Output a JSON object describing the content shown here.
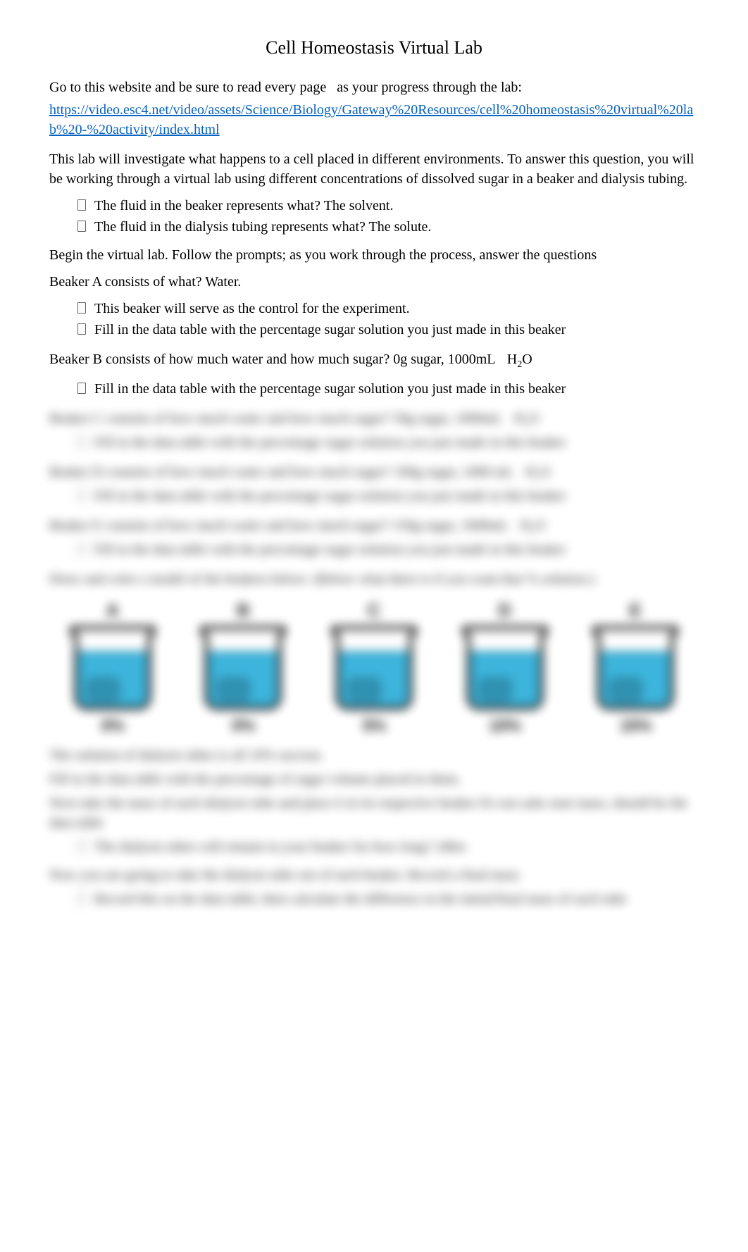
{
  "title": "Cell Homeostasis Virtual Lab",
  "intro": {
    "instruction_prefix": "Go to this website and be sure to read every page",
    "instruction_suffix": "as your progress through the lab:",
    "link_text": "https://video.esc4.net/video/assets/Science/Biology/Gateway%20Resources/cell%20homeostasis%20virtual%20lab%20-%20activity/index.html"
  },
  "description": "This lab will investigate what happens to a cell placed in different environments. To answer this question, you will be working through a virtual lab using different concentrations of dissolved sugar in a beaker and dialysis tubing.",
  "fluid_questions": [
    "The fluid in the beaker represents what? The solvent.",
    "The fluid in the dialysis tubing represents what? The solute."
  ],
  "begin_text": "Begin the virtual lab. Follow the prompts; as you work through the process, answer the questions",
  "beaker_a": {
    "question": "Beaker A consists of what? Water.",
    "bullets": [
      "This beaker will serve as the control for the experiment.",
      "Fill in the data table with the percentage sugar solution you just made in this beaker"
    ]
  },
  "beaker_b": {
    "question": "Beaker B consists of how much water and how much sugar? 0g sugar, 1000mL",
    "formula_h": "H",
    "formula_sub": "2",
    "formula_o": "O",
    "bullets": [
      "Fill in the data table with the percentage sugar solution you just made in this beaker"
    ]
  },
  "blurred": {
    "beaker_c": {
      "question": "Beaker C consists of how much water and how much sugar? 50g sugar, 1000mL",
      "formula": "H₂O",
      "bullet": "Fill in the data table with the percentage sugar solution you just made in this beaker"
    },
    "beaker_d": {
      "question": "Beaker D consists of how much water and how much sugar? 100g sugar, 1000 mL",
      "formula": "H₂O",
      "bullet": "Fill in the data table with the percentage sugar solution you just made in this beaker"
    },
    "beaker_e": {
      "question": "Beaker E consists of how much water and how much sugar? 150g sugar, 1000mL",
      "formula": "H₂O",
      "bullet": "Fill in the data table with the percentage sugar solution you just made in this beaker"
    },
    "draw_instruction": "Draw and color a model of the beakers below: (Below what there is if you want that % solution.)",
    "beakers": [
      {
        "letter": "A",
        "label": "0%",
        "fill_color": "#1ba8d6"
      },
      {
        "letter": "B",
        "label": "0%",
        "fill_color": "#1ba8d6"
      },
      {
        "letter": "C",
        "label": "5%",
        "fill_color": "#1ba8d6"
      },
      {
        "letter": "D",
        "label": "10%",
        "fill_color": "#1ba8d6"
      },
      {
        "letter": "E",
        "label": "15%",
        "fill_color": "#1ba8d6"
      }
    ],
    "post_lines": [
      "The solution of dialysis tubes is all 10% sucrose.",
      "Fill in the data table with the percentage of sugar volume placed in them.",
      "Next take the mass of each dialysis tube and place it in its respective beaker    It's not asks start mass, should be the data table",
      "The dialysis tubes will remain in your beaker for how long? 24hrs",
      "Now you are going to take the dialysis tube out of each beaker. Record a final mass",
      "Record this on the data table; then calculate the difference in the initial/final mass of each tube"
    ]
  },
  "colors": {
    "link": "#0563c1",
    "text": "#000000",
    "background": "#ffffff",
    "liquid": "#1ba8d6",
    "liquid_dark": "#0d7fa6"
  }
}
